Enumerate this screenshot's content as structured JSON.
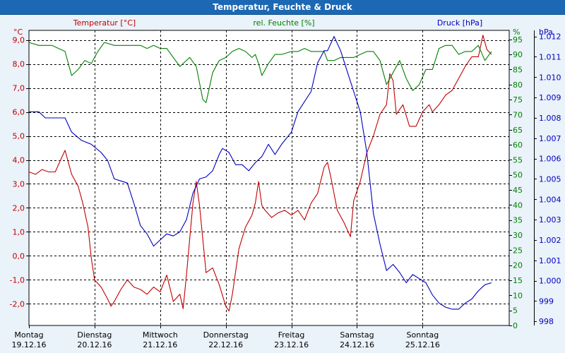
{
  "window": {
    "title": "Temperatur, Feuchte & Druck"
  },
  "chart_data": {
    "type": "line",
    "title": "Temperatur, Feuchte & Druck",
    "x_labels": [
      {
        "day": "Montag",
        "date": "19.12.16"
      },
      {
        "day": "Dienstag",
        "date": "20.12.16"
      },
      {
        "day": "Mittwoch",
        "date": "21.12.16"
      },
      {
        "day": "Donnerstag",
        "date": "22.12.16"
      },
      {
        "day": "Freitag",
        "date": "23.12.16"
      },
      {
        "day": "Samstag",
        "date": "24.12.16"
      },
      {
        "day": "Sonntag",
        "date": "25.12.16"
      }
    ],
    "xlim": [
      0,
      7.32
    ],
    "grid": true,
    "axes": {
      "temperature": {
        "label": "Temperatur [°C]",
        "unit": "°C",
        "ylim": [
          -2.9,
          9.4
        ],
        "ticks": [
          "9,0",
          "8,0",
          "7,0",
          "6,0",
          "5,0",
          "4,0",
          "3,0",
          "2,0",
          "1,0",
          "0,0",
          "-1,0",
          "-2,0"
        ],
        "tick_values": [
          9,
          8,
          7,
          6,
          5,
          4,
          3,
          2,
          1,
          0,
          -1,
          -2
        ],
        "color": "#c00000"
      },
      "humidity": {
        "label": "rel. Feuchte [%]",
        "unit": "%",
        "ylim": [
          0,
          98
        ],
        "ticks": [
          "95",
          "90",
          "85",
          "80",
          "75",
          "70",
          "65",
          "60",
          "55",
          "50",
          "45",
          "40",
          "35",
          "30",
          "25",
          "20",
          "15",
          "10",
          "5",
          "0"
        ],
        "tick_values": [
          95,
          90,
          85,
          80,
          75,
          70,
          65,
          60,
          55,
          50,
          45,
          40,
          35,
          30,
          25,
          20,
          15,
          10,
          5,
          0
        ],
        "color": "#008000"
      },
      "pressure": {
        "label": "Druck [hPa]",
        "unit": "hPa",
        "ylim": [
          997.8,
          1012.3
        ],
        "ticks": [
          "1.012",
          "1.011",
          "1.010",
          "1.009",
          "1.008",
          "1.007",
          "1.006",
          "1.005",
          "1.004",
          "1.003",
          "1.002",
          "1.001",
          "1.000",
          "999",
          "998"
        ],
        "tick_values": [
          1012,
          1011,
          1010,
          1009,
          1008,
          1007,
          1006,
          1005,
          1004,
          1003,
          1002,
          1001,
          1000,
          999,
          998
        ],
        "color": "#0000c0"
      }
    },
    "series": [
      {
        "name": "Temperatur [°C]",
        "axis": "temperature",
        "color": "#c00000",
        "points": [
          [
            0,
            3.5
          ],
          [
            0.1,
            3.4
          ],
          [
            0.2,
            3.6
          ],
          [
            0.3,
            3.5
          ],
          [
            0.4,
            3.5
          ],
          [
            0.5,
            4.1
          ],
          [
            0.55,
            4.4
          ],
          [
            0.65,
            3.4
          ],
          [
            0.75,
            2.9
          ],
          [
            0.82,
            2.2
          ],
          [
            0.9,
            1.2
          ],
          [
            0.95,
            -0.1
          ],
          [
            1.0,
            -1.0
          ],
          [
            1.1,
            -1.3
          ],
          [
            1.2,
            -1.8
          ],
          [
            1.25,
            -2.1
          ],
          [
            1.3,
            -1.9
          ],
          [
            1.4,
            -1.4
          ],
          [
            1.5,
            -1.0
          ],
          [
            1.6,
            -1.3
          ],
          [
            1.7,
            -1.4
          ],
          [
            1.8,
            -1.6
          ],
          [
            1.9,
            -1.3
          ],
          [
            2.0,
            -1.5
          ],
          [
            2.1,
            -0.8
          ],
          [
            2.2,
            -1.9
          ],
          [
            2.3,
            -1.6
          ],
          [
            2.35,
            -2.2
          ],
          [
            2.4,
            -0.8
          ],
          [
            2.5,
            2.2
          ],
          [
            2.55,
            3.1
          ],
          [
            2.6,
            2.1
          ],
          [
            2.7,
            -0.7
          ],
          [
            2.8,
            -0.5
          ],
          [
            2.9,
            -1.2
          ],
          [
            3.0,
            -2.1
          ],
          [
            3.05,
            -2.3
          ],
          [
            3.1,
            -1.6
          ],
          [
            3.2,
            0.3
          ],
          [
            3.3,
            1.2
          ],
          [
            3.4,
            1.7
          ],
          [
            3.45,
            2.2
          ],
          [
            3.5,
            3.1
          ],
          [
            3.55,
            2.1
          ],
          [
            3.6,
            1.9
          ],
          [
            3.7,
            1.6
          ],
          [
            3.8,
            1.8
          ],
          [
            3.9,
            1.9
          ],
          [
            4.0,
            1.7
          ],
          [
            4.1,
            1.9
          ],
          [
            4.2,
            1.5
          ],
          [
            4.3,
            2.2
          ],
          [
            4.4,
            2.6
          ],
          [
            4.5,
            3.7
          ],
          [
            4.55,
            3.9
          ],
          [
            4.6,
            3.3
          ],
          [
            4.7,
            1.9
          ],
          [
            4.8,
            1.4
          ],
          [
            4.9,
            0.8
          ],
          [
            4.95,
            2.3
          ],
          [
            5.05,
            3.1
          ],
          [
            5.15,
            4.3
          ],
          [
            5.25,
            5.0
          ],
          [
            5.35,
            5.9
          ],
          [
            5.45,
            6.3
          ],
          [
            5.5,
            7.6
          ],
          [
            5.55,
            7.3
          ],
          [
            5.6,
            5.9
          ],
          [
            5.7,
            6.3
          ],
          [
            5.8,
            5.4
          ],
          [
            5.9,
            5.4
          ],
          [
            6.0,
            6.0
          ],
          [
            6.1,
            6.3
          ],
          [
            6.15,
            6.0
          ],
          [
            6.25,
            6.3
          ],
          [
            6.35,
            6.7
          ],
          [
            6.45,
            6.9
          ],
          [
            6.55,
            7.4
          ],
          [
            6.65,
            7.9
          ],
          [
            6.75,
            8.3
          ],
          [
            6.85,
            8.3
          ],
          [
            6.92,
            9.2
          ],
          [
            6.98,
            8.6
          ],
          [
            7.05,
            8.4
          ]
        ]
      },
      {
        "name": "rel. Feuchte [%]",
        "axis": "humidity",
        "color": "#008000",
        "points": [
          [
            0,
            94
          ],
          [
            0.15,
            93
          ],
          [
            0.35,
            93
          ],
          [
            0.55,
            91
          ],
          [
            0.65,
            83
          ],
          [
            0.75,
            85
          ],
          [
            0.85,
            88
          ],
          [
            0.95,
            87
          ],
          [
            1.05,
            91
          ],
          [
            1.15,
            94
          ],
          [
            1.3,
            93
          ],
          [
            1.5,
            93
          ],
          [
            1.7,
            93
          ],
          [
            1.8,
            92
          ],
          [
            1.9,
            93
          ],
          [
            2.0,
            92
          ],
          [
            2.1,
            92
          ],
          [
            2.2,
            89
          ],
          [
            2.3,
            86
          ],
          [
            2.45,
            89
          ],
          [
            2.55,
            86
          ],
          [
            2.65,
            75
          ],
          [
            2.7,
            74
          ],
          [
            2.8,
            84
          ],
          [
            2.9,
            88
          ],
          [
            3.0,
            89
          ],
          [
            3.1,
            91
          ],
          [
            3.2,
            92
          ],
          [
            3.3,
            91
          ],
          [
            3.4,
            89
          ],
          [
            3.45,
            90
          ],
          [
            3.5,
            87
          ],
          [
            3.55,
            83
          ],
          [
            3.65,
            87
          ],
          [
            3.75,
            90
          ],
          [
            3.85,
            90
          ],
          [
            4.0,
            91
          ],
          [
            4.1,
            91
          ],
          [
            4.2,
            92
          ],
          [
            4.3,
            91
          ],
          [
            4.4,
            91
          ],
          [
            4.5,
            91
          ],
          [
            4.55,
            88
          ],
          [
            4.65,
            88
          ],
          [
            4.75,
            89
          ],
          [
            4.85,
            89
          ],
          [
            4.95,
            89
          ],
          [
            5.05,
            90
          ],
          [
            5.15,
            91
          ],
          [
            5.25,
            91
          ],
          [
            5.35,
            88
          ],
          [
            5.45,
            80
          ],
          [
            5.55,
            84
          ],
          [
            5.65,
            88
          ],
          [
            5.75,
            82
          ],
          [
            5.85,
            78
          ],
          [
            5.95,
            80
          ],
          [
            6.05,
            85
          ],
          [
            6.15,
            85
          ],
          [
            6.25,
            92
          ],
          [
            6.35,
            93
          ],
          [
            6.45,
            93
          ],
          [
            6.55,
            90
          ],
          [
            6.65,
            91
          ],
          [
            6.75,
            91
          ],
          [
            6.85,
            93
          ],
          [
            6.95,
            88
          ],
          [
            7.05,
            91
          ]
        ]
      },
      {
        "name": "Druck [hPa]",
        "axis": "pressure",
        "color": "#0000c0",
        "points": [
          [
            0,
            1008.3
          ],
          [
            0.15,
            1008.3
          ],
          [
            0.25,
            1008.0
          ],
          [
            0.4,
            1008.0
          ],
          [
            0.55,
            1008.0
          ],
          [
            0.65,
            1007.3
          ],
          [
            0.8,
            1006.9
          ],
          [
            0.95,
            1006.7
          ],
          [
            1.1,
            1006.3
          ],
          [
            1.2,
            1005.9
          ],
          [
            1.3,
            1005.0
          ],
          [
            1.4,
            1004.9
          ],
          [
            1.5,
            1004.8
          ],
          [
            1.6,
            1003.8
          ],
          [
            1.7,
            1002.7
          ],
          [
            1.8,
            1002.3
          ],
          [
            1.9,
            1001.7
          ],
          [
            2.0,
            1002.0
          ],
          [
            2.1,
            1002.3
          ],
          [
            2.2,
            1002.2
          ],
          [
            2.3,
            1002.4
          ],
          [
            2.4,
            1003.0
          ],
          [
            2.5,
            1004.3
          ],
          [
            2.6,
            1005.0
          ],
          [
            2.7,
            1005.1
          ],
          [
            2.8,
            1005.4
          ],
          [
            2.9,
            1006.2
          ],
          [
            2.95,
            1006.5
          ],
          [
            3.05,
            1006.3
          ],
          [
            3.15,
            1005.7
          ],
          [
            3.25,
            1005.7
          ],
          [
            3.35,
            1005.4
          ],
          [
            3.45,
            1005.8
          ],
          [
            3.55,
            1006.1
          ],
          [
            3.65,
            1006.7
          ],
          [
            3.75,
            1006.2
          ],
          [
            3.85,
            1006.7
          ],
          [
            4.0,
            1007.3
          ],
          [
            4.1,
            1008.3
          ],
          [
            4.2,
            1008.8
          ],
          [
            4.3,
            1009.3
          ],
          [
            4.4,
            1010.7
          ],
          [
            4.5,
            1011.3
          ],
          [
            4.55,
            1011.3
          ],
          [
            4.65,
            1012.0
          ],
          [
            4.75,
            1011.3
          ],
          [
            4.85,
            1010.3
          ],
          [
            4.95,
            1009.3
          ],
          [
            5.05,
            1008.3
          ],
          [
            5.15,
            1006.3
          ],
          [
            5.25,
            1003.3
          ],
          [
            5.35,
            1001.8
          ],
          [
            5.45,
            1000.5
          ],
          [
            5.55,
            1000.8
          ],
          [
            5.65,
            1000.4
          ],
          [
            5.75,
            999.9
          ],
          [
            5.85,
            1000.3
          ],
          [
            5.95,
            1000.1
          ],
          [
            6.05,
            999.9
          ],
          [
            6.15,
            999.3
          ],
          [
            6.25,
            998.9
          ],
          [
            6.35,
            998.7
          ],
          [
            6.45,
            998.6
          ],
          [
            6.55,
            998.6
          ],
          [
            6.65,
            998.9
          ],
          [
            6.75,
            999.1
          ],
          [
            6.85,
            999.5
          ],
          [
            6.95,
            999.8
          ],
          [
            7.05,
            999.9
          ]
        ]
      }
    ]
  }
}
